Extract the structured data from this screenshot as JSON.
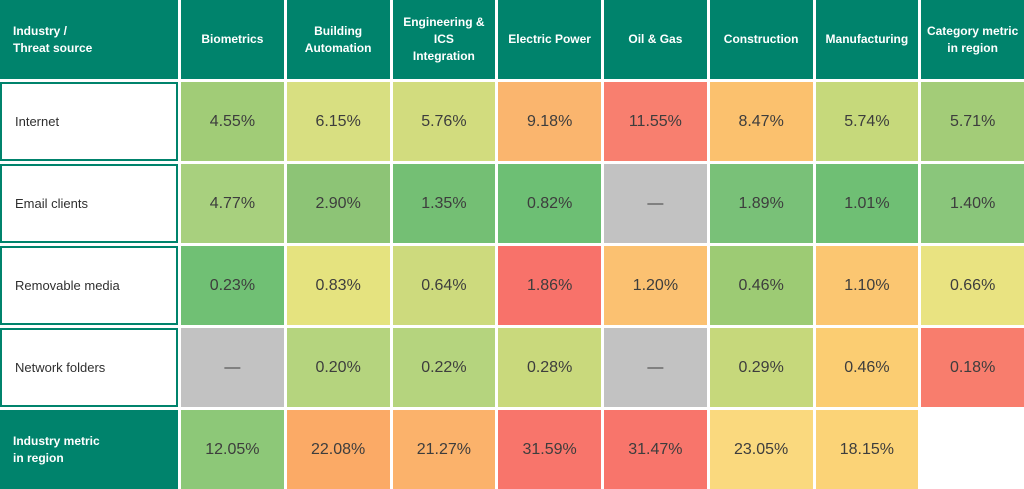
{
  "palette": {
    "header_bg": "#00836C",
    "header_text": "#ffffff",
    "cell_text": "#3d3d3d",
    "row_label_text": "#2f2f2f",
    "row_label_border": "#00836C",
    "no_data_bg": "#c2c2c2",
    "background": "#ffffff"
  },
  "chart_data": {
    "type": "heatmap",
    "corner_label": "Industry /\nThreat source",
    "no_data_symbol": "—",
    "color_scale": "green = low, yellow/orange = medium, red = high, gray = no data",
    "columns": [
      "Biometrics",
      "Building\nAutomation",
      "Engineering & ICS\nIntegration",
      "Electric Power",
      "Oil & Gas",
      "Construction",
      "Manufacturing",
      "Category metric\nin region"
    ],
    "rows": [
      {
        "label": "Internet",
        "cells": [
          {
            "display": "4.55%",
            "value": 4.55,
            "color": "#a1cc77"
          },
          {
            "display": "6.15%",
            "value": 6.15,
            "color": "#d8df81"
          },
          {
            "display": "5.76%",
            "value": 5.76,
            "color": "#d2dc7e"
          },
          {
            "display": "9.18%",
            "value": 9.18,
            "color": "#fab56e"
          },
          {
            "display": "11.55%",
            "value": 11.55,
            "color": "#f87f6f"
          },
          {
            "display": "8.47%",
            "value": 8.47,
            "color": "#fbc16e"
          },
          {
            "display": "5.74%",
            "value": 5.74,
            "color": "#c6d97b"
          },
          {
            "display": "5.71%",
            "value": 5.71,
            "color": "#a3cc78"
          }
        ]
      },
      {
        "label": "Email clients",
        "cells": [
          {
            "display": "4.77%",
            "value": 4.77,
            "color": "#a8d07e"
          },
          {
            "display": "2.90%",
            "value": 2.9,
            "color": "#8dc476"
          },
          {
            "display": "1.35%",
            "value": 1.35,
            "color": "#74bf74"
          },
          {
            "display": "0.82%",
            "value": 0.82,
            "color": "#6dbf74"
          },
          {
            "display": "—",
            "value": null,
            "color": "#c2c2c2"
          },
          {
            "display": "1.89%",
            "value": 1.89,
            "color": "#79c178"
          },
          {
            "display": "1.01%",
            "value": 1.01,
            "color": "#6fbf74"
          },
          {
            "display": "1.40%",
            "value": 1.4,
            "color": "#8ac67b"
          }
        ]
      },
      {
        "label": "Removable media",
        "cells": [
          {
            "display": "0.23%",
            "value": 0.23,
            "color": "#70c074"
          },
          {
            "display": "0.83%",
            "value": 0.83,
            "color": "#e5e37f"
          },
          {
            "display": "0.64%",
            "value": 0.64,
            "color": "#cdda7d"
          },
          {
            "display": "1.86%",
            "value": 1.86,
            "color": "#f8726a"
          },
          {
            "display": "1.20%",
            "value": 1.2,
            "color": "#fbc171"
          },
          {
            "display": "0.46%",
            "value": 0.46,
            "color": "#9dcb74"
          },
          {
            "display": "1.10%",
            "value": 1.1,
            "color": "#fbc671"
          },
          {
            "display": "0.66%",
            "value": 0.66,
            "color": "#e9e381"
          }
        ]
      },
      {
        "label": "Network folders",
        "cells": [
          {
            "display": "—",
            "value": null,
            "color": "#c2c2c2"
          },
          {
            "display": "0.20%",
            "value": 0.2,
            "color": "#b5d47e"
          },
          {
            "display": "0.22%",
            "value": 0.22,
            "color": "#b5d47e"
          },
          {
            "display": "0.28%",
            "value": 0.28,
            "color": "#c9d97c"
          },
          {
            "display": "—",
            "value": null,
            "color": "#c2c2c2"
          },
          {
            "display": "0.29%",
            "value": 0.29,
            "color": "#c6d87b"
          },
          {
            "display": "0.46%",
            "value": 0.46,
            "color": "#fbcd72"
          },
          {
            "display": "0.18%",
            "value": 0.18,
            "color": "#f87d6d"
          }
        ]
      },
      {
        "label": "Industry metric\nin region",
        "cells": [
          {
            "display": "12.05%",
            "value": 12.05,
            "color": "#8dc878"
          },
          {
            "display": "22.08%",
            "value": 22.08,
            "color": "#fbaa66"
          },
          {
            "display": "21.27%",
            "value": 21.27,
            "color": "#fbb26b"
          },
          {
            "display": "31.59%",
            "value": 31.59,
            "color": "#f8756b"
          },
          {
            "display": "31.47%",
            "value": 31.47,
            "color": "#f8756b"
          },
          {
            "display": "23.05%",
            "value": 23.05,
            "color": "#fad97e"
          },
          {
            "display": "18.15%",
            "value": 18.15,
            "color": "#fbd377"
          },
          {
            "display": "",
            "value": null,
            "color": "#ffffff"
          }
        ]
      }
    ]
  }
}
